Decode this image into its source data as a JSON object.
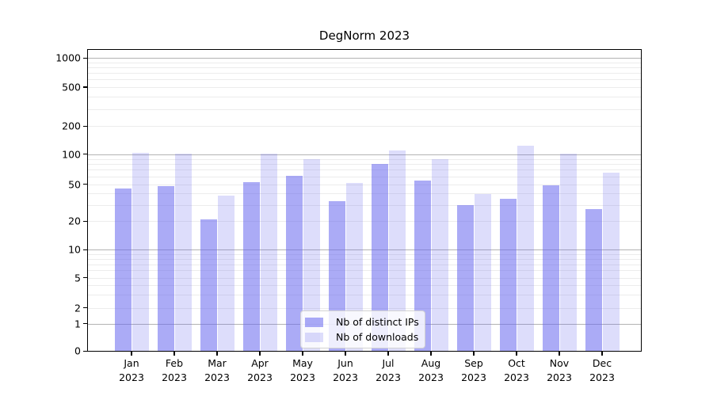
{
  "chart_data": {
    "type": "bar",
    "title": "DegNorm 2023",
    "categories": [
      "Jan",
      "Feb",
      "Mar",
      "Apr",
      "May",
      "Jun",
      "Jul",
      "Aug",
      "Sep",
      "Oct",
      "Nov",
      "Dec"
    ],
    "year_label": "2023",
    "series": [
      {
        "name": "Nb of distinct IPs",
        "color": "rgba(102,102,238,0.55)",
        "values": [
          45,
          48,
          21,
          53,
          61,
          33,
          80,
          55,
          30,
          35,
          49,
          27
        ]
      },
      {
        "name": "Nb of downloads",
        "color": "rgba(102,102,238,0.22)",
        "values": [
          104,
          102,
          38,
          102,
          89,
          52,
          110,
          89,
          39,
          124,
          101,
          65
        ]
      }
    ],
    "xlabel": "",
    "ylabel": "",
    "y_axis": {
      "scale": "symlog",
      "tick_values": [
        0,
        1,
        2,
        5,
        10,
        20,
        50,
        100,
        200,
        500,
        1000
      ],
      "tick_labels": [
        "0",
        "1",
        "2",
        "5",
        "10",
        "20",
        "50",
        "100",
        "200",
        "500",
        "1000"
      ],
      "major_grid_values": [
        1,
        10,
        100,
        1000
      ],
      "ylim": [
        0,
        1200
      ]
    },
    "grid": true,
    "legend_position": "lower-center",
    "colors": {
      "bar_dark": "#a8a8f3",
      "bar_light": "#dcdcf8",
      "major_grid": "#b3b3b3",
      "minor_grid": "#ececec",
      "axis": "#000000"
    }
  }
}
